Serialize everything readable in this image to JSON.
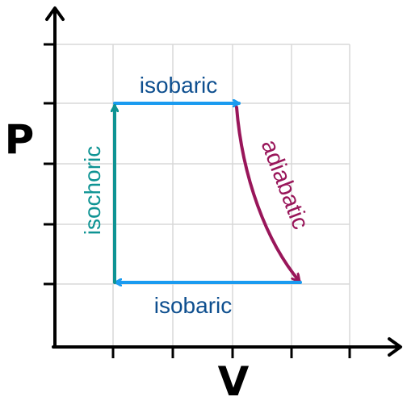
{
  "diagram": {
    "axes": {
      "x_label": "V",
      "y_label": "P"
    },
    "processes": [
      {
        "id": "isobaric-top",
        "label": "isobaric",
        "color": "#1a9bf0",
        "label_color": "#0e4f8f"
      },
      {
        "id": "adiabatic",
        "label": "adiabatic",
        "color": "#99165a",
        "label_color": "#99165a"
      },
      {
        "id": "isobaric-bottom",
        "label": "isobaric",
        "color": "#1a9bf0",
        "label_color": "#0e4f8f"
      },
      {
        "id": "isochoric",
        "label": "isochoric",
        "color": "#0e9393",
        "label_color": "#0e9393"
      }
    ],
    "colors": {
      "axis": "#000000",
      "grid": "#d8d8d8"
    }
  }
}
